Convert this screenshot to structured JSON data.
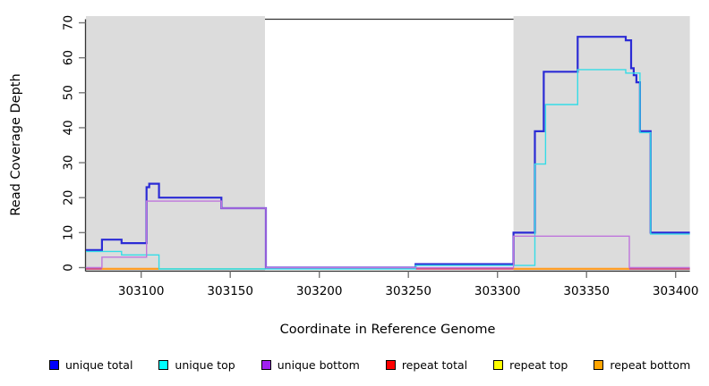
{
  "chart_data": {
    "type": "line",
    "subtype": "step-coverage",
    "title": "",
    "xlabel": "Coordinate in Reference Genome",
    "ylabel": "Read Coverage Depth",
    "xlim": [
      303069,
      303408
    ],
    "ylim": [
      0,
      70
    ],
    "x_ticks": [
      "303100",
      "303150",
      "303200",
      "303250",
      "303300",
      "303350",
      "303400"
    ],
    "x_tick_values": [
      303100,
      303150,
      303200,
      303250,
      303300,
      303350,
      303400
    ],
    "y_ticks": [
      "0",
      "10",
      "20",
      "30",
      "40",
      "50",
      "60",
      "70"
    ],
    "y_tick_values": [
      0,
      10,
      20,
      30,
      40,
      50,
      60,
      70
    ],
    "grid": "off",
    "legend_position": "bottom",
    "shaded_regions": [
      {
        "from": 303069,
        "to": 303169.5,
        "color": "#DCDCDC"
      },
      {
        "from": 303309,
        "to": 303408,
        "color": "#DCDCDC"
      }
    ],
    "series": [
      {
        "name": "unique total",
        "color": "#2B2BD5",
        "legend_color": "#0000FF",
        "points": [
          [
            303069,
            5
          ],
          [
            303078,
            8
          ],
          [
            303089,
            7
          ],
          [
            303103,
            23
          ],
          [
            303104.5,
            24
          ],
          [
            303110,
            20
          ],
          [
            303145,
            17
          ],
          [
            303170,
            0
          ],
          [
            303254,
            1
          ],
          [
            303309,
            10
          ],
          [
            303321,
            39
          ],
          [
            303326,
            56
          ],
          [
            303345,
            66
          ],
          [
            303372,
            65
          ],
          [
            303375,
            57
          ],
          [
            303376.5,
            55
          ],
          [
            303378,
            53
          ],
          [
            303380,
            39
          ],
          [
            303386,
            10
          ]
        ],
        "end": 303408
      },
      {
        "name": "unique top",
        "color": "#35DCE6",
        "legend_color": "#00FFFF",
        "points": [
          [
            303069,
            5
          ],
          [
            303089,
            4
          ],
          [
            303110,
            0
          ],
          [
            303254,
            1
          ],
          [
            303321,
            30
          ],
          [
            303327,
            47
          ],
          [
            303345,
            57
          ],
          [
            303372,
            56
          ],
          [
            303380,
            39
          ],
          [
            303386,
            10
          ]
        ],
        "end": 303408
      },
      {
        "name": "unique bottom",
        "color": "#BF75DC",
        "legend_color": "#A020F0",
        "points": [
          [
            303069,
            0
          ],
          [
            303078,
            3
          ],
          [
            303103,
            19
          ],
          [
            303145,
            17
          ],
          [
            303170,
            0
          ],
          [
            303309,
            9
          ],
          [
            303374,
            0
          ]
        ],
        "end": 303408
      },
      {
        "name": "repeat total",
        "color": "#D03A6A",
        "legend_color": "#FF0000",
        "points": [
          [
            303069,
            0
          ]
        ],
        "end": 303408
      },
      {
        "name": "repeat top",
        "color": "#FFE800",
        "legend_color": "#FFFF00",
        "points": [
          [
            303069,
            0
          ]
        ],
        "end": 303408
      },
      {
        "name": "repeat bottom",
        "color": "#FF9D24",
        "legend_color": "#FFA500",
        "points": [
          [
            303069,
            0
          ]
        ],
        "end": 303408
      }
    ],
    "zero_line_segments": [
      {
        "from": 303069,
        "to": 303078,
        "color": "#D03A6A",
        "name": "repeat-total-zero"
      },
      {
        "from": 303078,
        "to": 303110,
        "color": "#FF9D24",
        "name": "repeat-bottom-zero"
      },
      {
        "from": 303110,
        "to": 303170,
        "color": "#8CCD8C",
        "name": "overlap-zero"
      },
      {
        "from": 303254,
        "to": 303309,
        "color": "#D03A6A",
        "name": "repeat-total-zero"
      },
      {
        "from": 303309,
        "to": 303374,
        "color": "#FF9D24",
        "name": "repeat-bottom-zero"
      },
      {
        "from": 303374,
        "to": 303408,
        "color": "#D03A6A",
        "name": "repeat-total-zero"
      }
    ]
  },
  "legend": {
    "items": [
      {
        "label": "unique total",
        "color": "#0000FF"
      },
      {
        "label": "unique top",
        "color": "#00FFFF"
      },
      {
        "label": "unique bottom",
        "color": "#A020F0"
      },
      {
        "label": "repeat total",
        "color": "#FF0000"
      },
      {
        "label": "repeat top",
        "color": "#FFFF00"
      },
      {
        "label": "repeat bottom",
        "color": "#FFA500"
      }
    ]
  }
}
